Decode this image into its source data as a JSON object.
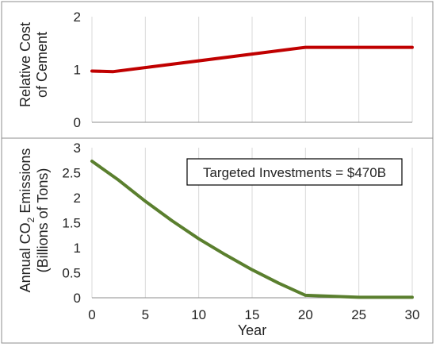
{
  "colors": {
    "cost_line": "#c00000",
    "emissions_line": "#5a7f2e",
    "grid": "#d9d9d9",
    "axis": "#8c8c8c",
    "text": "#222222"
  },
  "chart_data": [
    {
      "type": "line",
      "ylabel": "Relative Cost of Cement",
      "ylabel_lines": [
        "Relative Cost",
        "of Cement"
      ],
      "xlim": [
        0,
        30
      ],
      "ylim": [
        0,
        2
      ],
      "yticks": [
        0,
        1,
        2
      ],
      "x_gridlines": [
        0,
        5,
        10,
        15,
        20,
        25,
        30
      ],
      "grid": "vertical",
      "series": [
        {
          "x": [
            0,
            2,
            20,
            30
          ],
          "y": [
            0.97,
            0.96,
            1.42,
            1.42
          ]
        }
      ]
    },
    {
      "type": "line",
      "xlabel": "Year",
      "ylabel": "Annual CO2 Emissions (Billions of Tons)",
      "ylabel_lines": [
        "Annual CO",
        "2",
        " Emissions",
        "(Billions of Tons)"
      ],
      "xlim": [
        0,
        30
      ],
      "ylim": [
        0,
        3
      ],
      "xticks": [
        0,
        5,
        10,
        15,
        20,
        25,
        30
      ],
      "yticks": [
        0,
        0.5,
        1,
        1.5,
        2,
        2.5,
        3
      ],
      "grid": "vertical",
      "annotation": "Targeted Investments = $470B",
      "series": [
        {
          "x": [
            0,
            2.5,
            5,
            7.5,
            10,
            12.5,
            15,
            17.5,
            20,
            25,
            30
          ],
          "y": [
            2.73,
            2.35,
            1.93,
            1.54,
            1.18,
            0.86,
            0.56,
            0.29,
            0.05,
            0.01,
            0.01
          ]
        }
      ]
    }
  ]
}
